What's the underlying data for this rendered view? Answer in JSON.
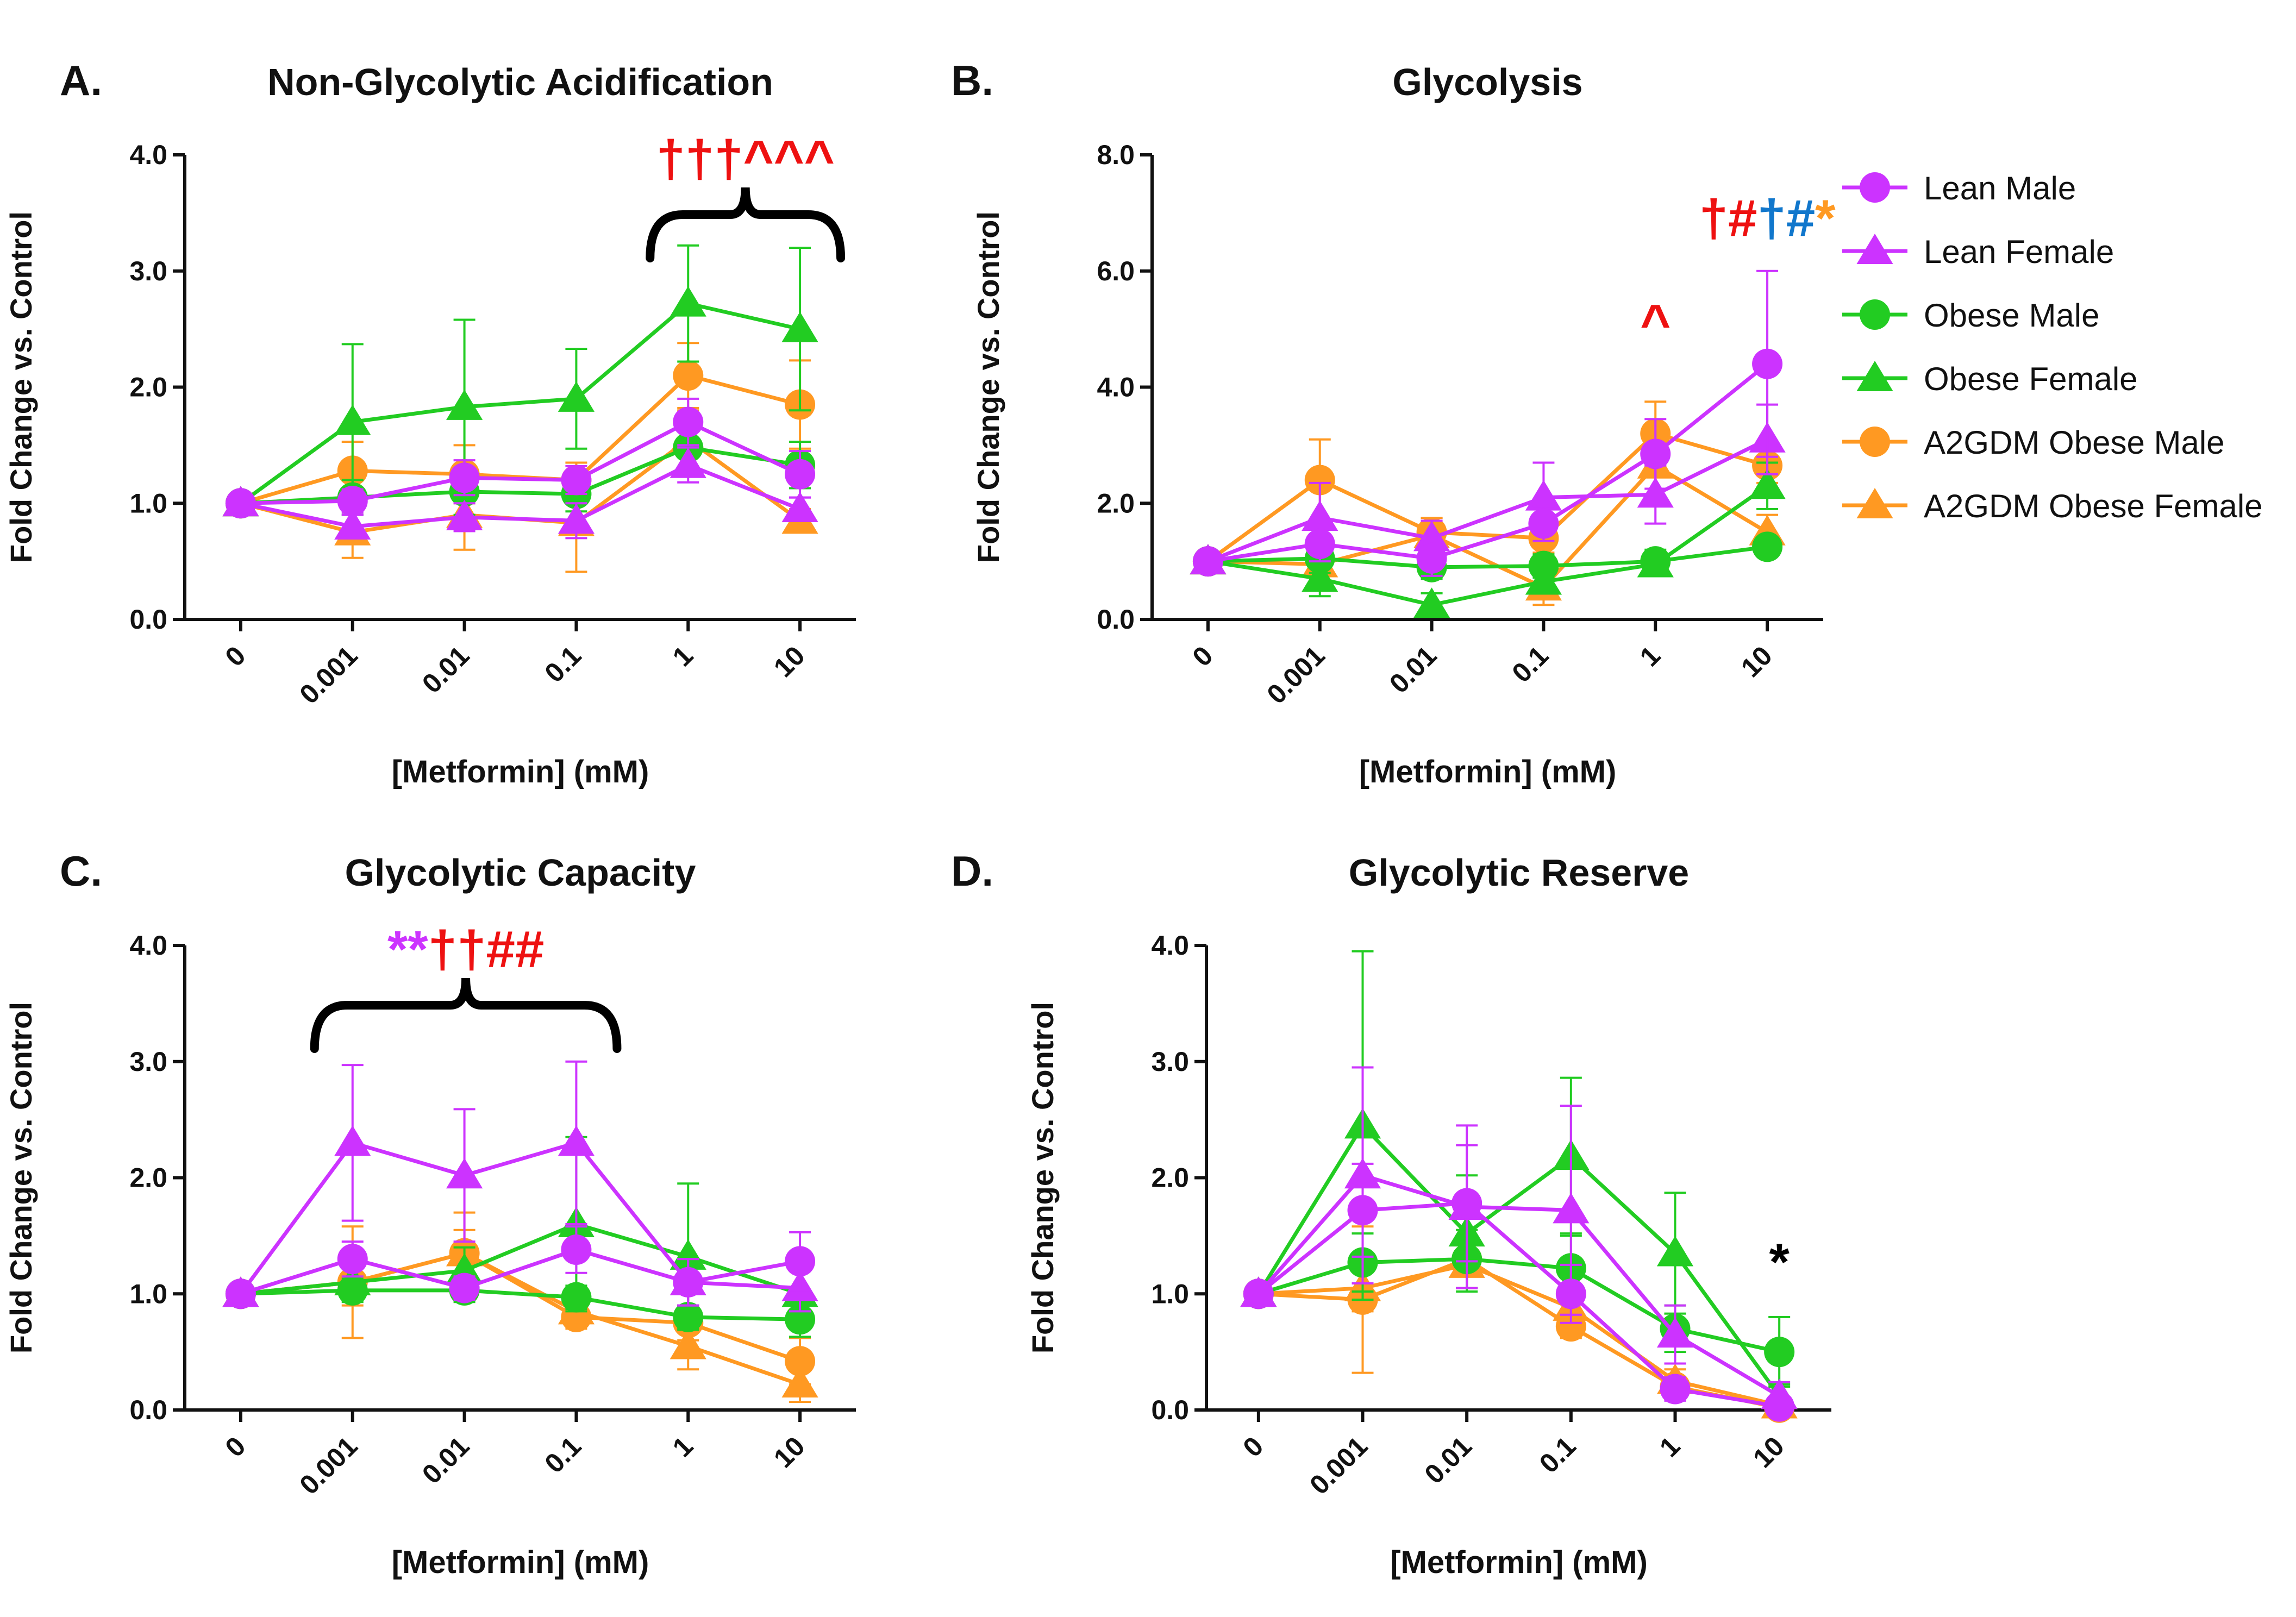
{
  "colors": {
    "lean": "#cc33ff",
    "obese": "#22cc22",
    "a2gdm": "#ff9922",
    "sig_red": "#ee1111",
    "sig_blue": "#1177cc",
    "sig_black": "#000000"
  },
  "legend": [
    {
      "label": "Lean Male",
      "color": "#cc33ff",
      "marker": "circle"
    },
    {
      "label": "Lean Female",
      "color": "#cc33ff",
      "marker": "triangle"
    },
    {
      "label": "Obese Male",
      "color": "#22cc22",
      "marker": "circle"
    },
    {
      "label": "Obese Female",
      "color": "#22cc22",
      "marker": "triangle"
    },
    {
      "label": "A2GDM Obese Male",
      "color": "#ff9922",
      "marker": "circle"
    },
    {
      "label": "A2GDM Obese Female",
      "color": "#ff9922",
      "marker": "triangle"
    }
  ],
  "chart_data": [
    {
      "type": "line",
      "letter": "A.",
      "title": "Non-Glycolytic Acidification",
      "xlabel": "[Metformin] (mM)",
      "ylabel": "Fold Change vs. Control",
      "categories": [
        "0",
        "0.001",
        "0.01",
        "0.1",
        "1",
        "10"
      ],
      "ylim": [
        0,
        4
      ],
      "yticks": [
        "0.0",
        "1.0",
        "2.0",
        "3.0",
        "4.0"
      ],
      "series": [
        {
          "name": "Lean Male",
          "values": [
            1.0,
            1.02,
            1.22,
            1.2,
            1.7,
            1.25
          ],
          "errors": [
            0.05,
            0.1,
            0.15,
            0.12,
            0.2,
            0.2
          ]
        },
        {
          "name": "Lean Female",
          "values": [
            1.0,
            0.8,
            0.88,
            0.85,
            1.33,
            0.95
          ],
          "errors": [
            0.05,
            0.1,
            0.12,
            0.15,
            0.15,
            0.1
          ]
        },
        {
          "name": "Obese Male",
          "values": [
            1.0,
            1.05,
            1.1,
            1.08,
            1.48,
            1.33
          ],
          "errors": [
            0.05,
            0.15,
            0.2,
            0.15,
            0.2,
            0.2
          ]
        },
        {
          "name": "Obese Female",
          "values": [
            1.0,
            1.7,
            1.83,
            1.9,
            2.72,
            2.5
          ],
          "errors": [
            0.05,
            0.67,
            0.75,
            0.43,
            0.5,
            0.7
          ]
        },
        {
          "name": "A2GDM Obese Male",
          "values": [
            1.0,
            1.28,
            1.25,
            1.2,
            2.1,
            1.85
          ],
          "errors": [
            0.05,
            0.25,
            0.25,
            0.15,
            0.28,
            0.38
          ]
        },
        {
          "name": "A2GDM Obese Female",
          "values": [
            1.0,
            0.75,
            0.9,
            0.83,
            1.55,
            0.85
          ],
          "errors": [
            0.05,
            0.22,
            0.3,
            0.42,
            0.25,
            0.1
          ]
        }
      ],
      "annotations": [
        {
          "parts": [
            {
              "text": "†††^^^",
              "color": "#ee1111"
            }
          ],
          "bracket": [
            4,
            5
          ]
        }
      ]
    },
    {
      "type": "line",
      "letter": "B.",
      "title": "Glycolysis",
      "xlabel": "[Metformin] (mM)",
      "ylabel": "Fold Change vs. Control",
      "categories": [
        "0",
        "0.001",
        "0.01",
        "0.1",
        "1",
        "10"
      ],
      "ylim": [
        0,
        8
      ],
      "yticks": [
        "0.0",
        "2.0",
        "4.0",
        "6.0",
        "8.0"
      ],
      "series": [
        {
          "name": "Lean Male",
          "values": [
            1.0,
            1.3,
            1.05,
            1.65,
            2.85,
            4.4
          ],
          "errors": [
            0.05,
            0.3,
            0.3,
            0.3,
            0.6,
            1.6
          ]
        },
        {
          "name": "Lean Female",
          "values": [
            1.0,
            1.75,
            1.4,
            2.1,
            2.15,
            3.1
          ],
          "errors": [
            0.05,
            0.6,
            0.3,
            0.6,
            0.5,
            0.6
          ]
        },
        {
          "name": "Obese Male",
          "values": [
            1.0,
            1.05,
            0.9,
            0.92,
            1.0,
            1.25
          ],
          "errors": [
            0.05,
            0.25,
            0.2,
            0.2,
            0.2,
            0.15
          ]
        },
        {
          "name": "Obese Female",
          "values": [
            1.0,
            0.7,
            0.25,
            0.65,
            0.95,
            2.3
          ],
          "errors": [
            0.05,
            0.3,
            0.2,
            0.2,
            0.15,
            0.4
          ]
        },
        {
          "name": "A2GDM Obese Male",
          "values": [
            1.0,
            2.4,
            1.5,
            1.4,
            3.2,
            2.65
          ],
          "errors": [
            0.05,
            0.7,
            0.25,
            0.25,
            0.55,
            0.3
          ]
        },
        {
          "name": "A2GDM Obese Female",
          "values": [
            1.0,
            0.95,
            1.45,
            0.55,
            2.65,
            1.5
          ],
          "errors": [
            0.05,
            0.2,
            0.3,
            0.3,
            0.6,
            0.3
          ]
        }
      ],
      "annotations": [
        {
          "parts": [
            {
              "text": "^",
              "color": "#ee1111"
            }
          ],
          "at_category": 4,
          "at_value": 4.8
        },
        {
          "parts": [
            {
              "text": "†#",
              "color": "#ee1111"
            },
            {
              "text": "†#",
              "color": "#1177cc"
            },
            {
              "text": "*",
              "color": "#ff9922"
            }
          ],
          "at_category": 5,
          "at_value": 6.6
        }
      ]
    },
    {
      "type": "line",
      "letter": "C.",
      "title": "Glycolytic Capacity",
      "xlabel": "[Metformin] (mM)",
      "ylabel": "Fold Change vs. Control",
      "categories": [
        "0",
        "0.001",
        "0.01",
        "0.1",
        "1",
        "10"
      ],
      "ylim": [
        0,
        4
      ],
      "yticks": [
        "0.0",
        "1.0",
        "2.0",
        "3.0",
        "4.0"
      ],
      "series": [
        {
          "name": "Lean Male",
          "values": [
            1.0,
            1.3,
            1.05,
            1.38,
            1.1,
            1.28
          ],
          "errors": [
            0.05,
            0.15,
            0.1,
            0.2,
            0.2,
            0.25
          ]
        },
        {
          "name": "Lean Female",
          "values": [
            1.0,
            2.3,
            2.02,
            2.3,
            1.1,
            1.05
          ],
          "errors": [
            0.05,
            0.67,
            0.57,
            0.7,
            0.2,
            0.2
          ]
        },
        {
          "name": "Obese Male",
          "values": [
            1.0,
            1.03,
            1.03,
            0.97,
            0.8,
            0.78
          ],
          "errors": [
            0.05,
            0.1,
            0.1,
            0.1,
            0.1,
            0.15
          ]
        },
        {
          "name": "Obese Female",
          "values": [
            1.0,
            1.1,
            1.2,
            1.6,
            1.32,
            1.0
          ],
          "errors": [
            0.05,
            0.15,
            0.2,
            0.75,
            0.63,
            0.2
          ]
        },
        {
          "name": "A2GDM Obese Male",
          "values": [
            1.0,
            1.1,
            1.35,
            0.8,
            0.75,
            0.42
          ],
          "errors": [
            0.05,
            0.48,
            0.35,
            0.1,
            0.15,
            0.2
          ]
        },
        {
          "name": "A2GDM Obese Female",
          "values": [
            1.0,
            1.1,
            1.35,
            0.85,
            0.55,
            0.22
          ],
          "errors": [
            0.05,
            0.2,
            0.2,
            0.1,
            0.2,
            0.15
          ]
        }
      ],
      "annotations": [
        {
          "parts": [
            {
              "text": "**",
              "color": "#cc33ff"
            },
            {
              "text": "††##",
              "color": "#ee1111"
            }
          ],
          "bracket": [
            1,
            3
          ]
        }
      ]
    },
    {
      "type": "line",
      "letter": "D.",
      "title": "Glycolytic Reserve",
      "xlabel": "[Metformin] (mM)",
      "ylabel": "Fold Change vs. Control",
      "categories": [
        "0",
        "0.001",
        "0.01",
        "0.1",
        "1",
        "10"
      ],
      "ylim": [
        0,
        4
      ],
      "yticks": [
        "0.0",
        "1.0",
        "2.0",
        "3.0",
        "4.0"
      ],
      "series": [
        {
          "name": "Lean Male",
          "values": [
            1.0,
            1.72,
            1.78,
            1.0,
            0.18,
            0.03
          ],
          "errors": [
            0.05,
            0.4,
            0.5,
            0.25,
            0.1,
            0.05
          ]
        },
        {
          "name": "Lean Female",
          "values": [
            1.0,
            2.02,
            1.75,
            1.72,
            0.65,
            0.12
          ],
          "errors": [
            0.05,
            0.93,
            0.7,
            0.9,
            0.25,
            0.12
          ]
        },
        {
          "name": "Obese Male",
          "values": [
            1.0,
            1.27,
            1.3,
            1.22,
            0.7,
            0.5
          ],
          "errors": [
            0.05,
            0.25,
            0.25,
            0.3,
            0.2,
            0.3
          ]
        },
        {
          "name": "Obese Female",
          "values": [
            1.0,
            2.45,
            1.52,
            2.18,
            1.35,
            0.12
          ],
          "errors": [
            0.05,
            1.5,
            0.5,
            0.68,
            0.52,
            0.1
          ]
        },
        {
          "name": "A2GDM Obese Male",
          "values": [
            1.0,
            0.95,
            1.3,
            0.72,
            0.2,
            0.02
          ],
          "errors": [
            0.05,
            0.63,
            0.25,
            0.1,
            0.08,
            0.05
          ]
        },
        {
          "name": "A2GDM Obese Female",
          "values": [
            1.0,
            1.05,
            1.25,
            0.88,
            0.25,
            0.04
          ],
          "errors": [
            0.05,
            0.2,
            0.2,
            0.15,
            0.1,
            0.05
          ]
        }
      ],
      "annotations": [
        {
          "parts": [
            {
              "text": "*",
              "color": "#000000"
            }
          ],
          "at_category": 5,
          "at_value": 1.12
        }
      ]
    }
  ]
}
